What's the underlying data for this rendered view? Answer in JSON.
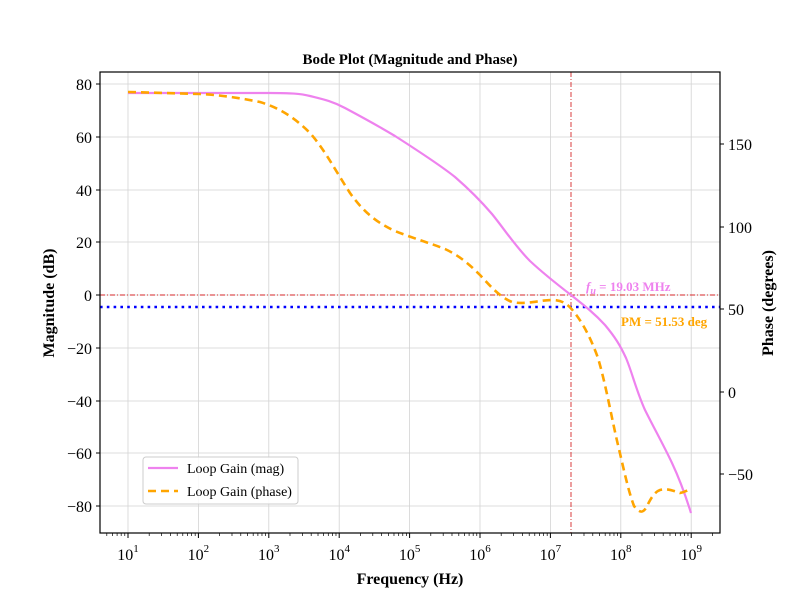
{
  "chart_data": {
    "type": "line",
    "title": "Bode Plot (Magnitude and Phase)",
    "xlabel": "Frequency (Hz)",
    "ylabel": "Magnitude (dB)",
    "ylabel_right": "Phase (degrees)",
    "xscale": "log",
    "xlim": [
      4,
      2000000000.0
    ],
    "ylim": [
      -90,
      85
    ],
    "ylim_right": [
      -78,
      192
    ],
    "grid": true,
    "legend_position": "lower left",
    "x_ticks": [
      "10^1",
      "10^2",
      "10^3",
      "10^4",
      "10^5",
      "10^6",
      "10^7",
      "10^8",
      "10^9"
    ],
    "y_ticks": [
      80,
      60,
      40,
      20,
      0,
      -20,
      -40,
      -60,
      -80
    ],
    "y_ticks_right": [
      150,
      100,
      50,
      0,
      -50
    ],
    "x": [
      10,
      100,
      1000,
      3000,
      10000,
      30000,
      100000,
      300000,
      1000000,
      3000000,
      10000000,
      19030000,
      30000000,
      100000000,
      300000000,
      1000000000
    ],
    "series": [
      {
        "name": "Loop Gain (mag)",
        "axis": "left",
        "color": "#ee82ee",
        "style": "solid",
        "values": [
          76.5,
          76.5,
          76.3,
          75,
          72,
          64,
          56,
          47,
          35,
          18,
          5,
          0,
          -6,
          -21,
          -50,
          -83
        ]
      },
      {
        "name": "Loop Gain (phase)",
        "axis": "right",
        "color": "#ffa500",
        "style": "dashed",
        "values": [
          181,
          180,
          175,
          160,
          130,
          103,
          93,
          85,
          75,
          55,
          55,
          51.53,
          38,
          -5,
          -70,
          -60
        ]
      }
    ],
    "annotations": [
      {
        "text_prefix": "f",
        "text_sub": "u",
        "text": "f_u = 19.03 MHz",
        "value_hz": 19030000,
        "color": "#ee82ee"
      },
      {
        "text": "PM = 51.53 deg",
        "value_deg": 51.53,
        "color": "#ffa500"
      }
    ],
    "reference_lines": [
      {
        "type": "vertical",
        "x": 19030000,
        "color": "#d62728",
        "style": "dashdot"
      },
      {
        "type": "horizontal",
        "y": 0,
        "axis": "left",
        "color": "#d62728",
        "style": "dashdot"
      },
      {
        "type": "horizontal",
        "y": 51.53,
        "axis": "right",
        "color": "#0000ff",
        "style": "dotted"
      }
    ]
  },
  "labels": {
    "title": "Bode Plot (Magnitude and Phase)",
    "xlabel": "Frequency (Hz)",
    "ylabel_left": "Magnitude (dB)",
    "ylabel_right": "Phase (degrees)",
    "fu_text": " = 19.03 MHz",
    "fu_f": "f",
    "fu_sub": "u",
    "pm_text": "PM = 51.53 deg",
    "legend_mag": "Loop Gain (mag)",
    "legend_phase": "Loop Gain (phase)",
    "xtick_base": "10",
    "xtick_exps": [
      "1",
      "2",
      "3",
      "4",
      "5",
      "6",
      "7",
      "8",
      "9"
    ],
    "ytick_left": [
      "80",
      "60",
      "40",
      "20",
      "0",
      "−20",
      "−40",
      "−60",
      "−80"
    ],
    "ytick_right": [
      "150",
      "100",
      "50",
      "0",
      "−50"
    ]
  },
  "colors": {
    "magnitude": "#ee82ee",
    "phase": "#ffa500",
    "crossover": "#d62728",
    "pm_line": "#0000ff"
  }
}
